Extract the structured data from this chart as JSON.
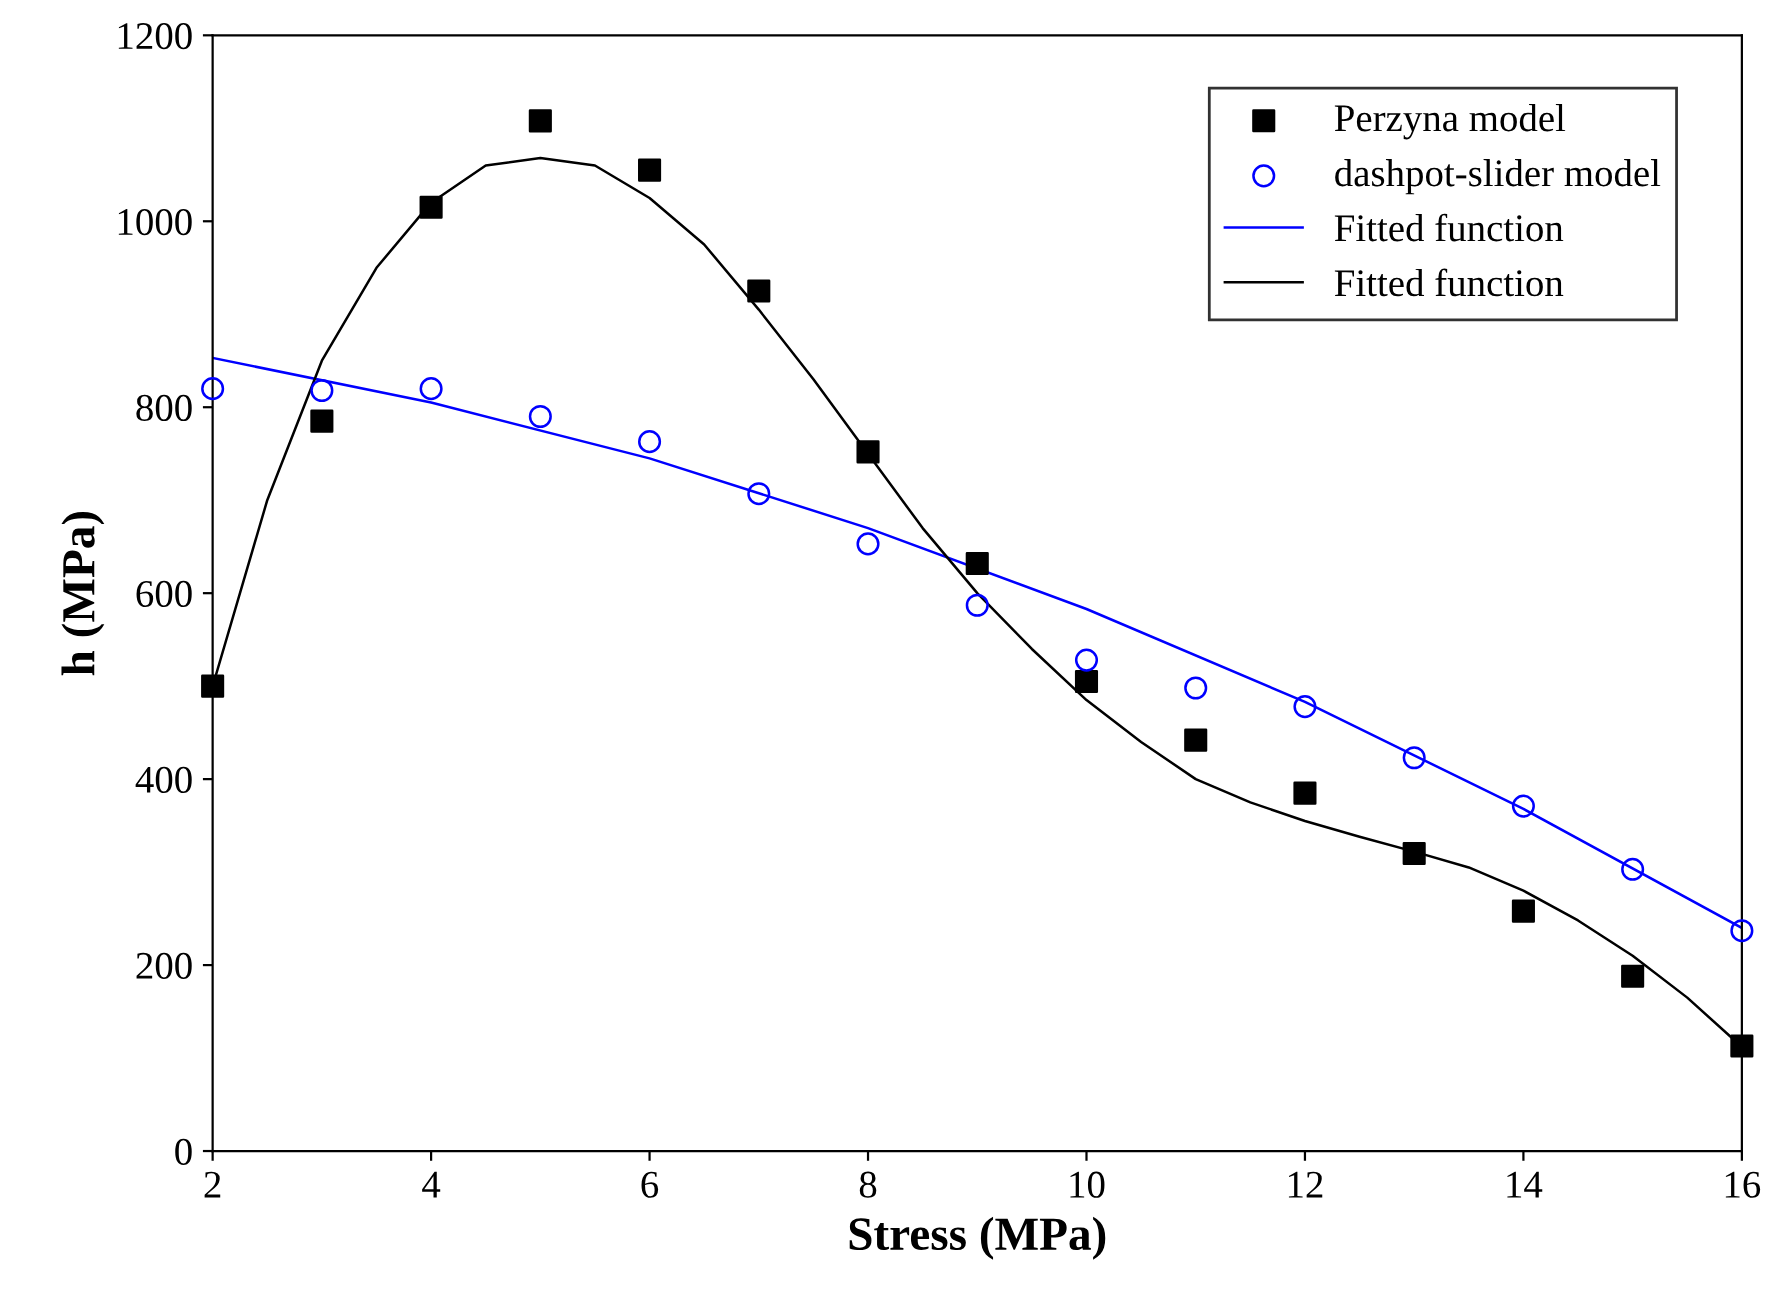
{
  "chart_data": {
    "type": "scatter",
    "xlabel": "Stress (MPa)",
    "ylabel": "h (MPa)",
    "xlim": [
      2,
      16
    ],
    "xticks": [
      2,
      4,
      6,
      8,
      10,
      12,
      14,
      16
    ],
    "ylim": [
      0,
      1200
    ],
    "yticks": [
      0,
      200,
      400,
      600,
      800,
      1000,
      1200
    ],
    "grid": false,
    "legend": "top right",
    "series": [
      {
        "name": "Perzyna model",
        "marker": "square",
        "color": "#000000",
        "x": [
          2,
          3,
          4,
          5,
          6,
          7,
          8,
          9,
          10,
          11,
          12,
          13,
          14,
          15,
          16
        ],
        "values": [
          500,
          785,
          1015,
          1108,
          1055,
          925,
          752,
          632,
          505,
          442,
          385,
          320,
          258,
          188,
          113
        ]
      },
      {
        "name": "dashpot-slider model",
        "marker": "circle",
        "color": "#0000ff",
        "x": [
          2,
          3,
          4,
          5,
          6,
          7,
          8,
          9,
          10,
          11,
          12,
          13,
          14,
          15,
          16
        ],
        "values": [
          820,
          818,
          820,
          790,
          763,
          707,
          653,
          587,
          528,
          498,
          478,
          423,
          371,
          303,
          237
        ]
      },
      {
        "name": "Fitted function",
        "type": "line",
        "color": "#0000ff",
        "x": [
          2,
          4,
          6,
          8,
          10,
          12,
          14,
          16
        ],
        "values": [
          853,
          805,
          745,
          670,
          583,
          483,
          368,
          240
        ]
      },
      {
        "name": "Fitted function",
        "type": "line",
        "color": "#000000",
        "x": [
          2,
          2.5,
          3,
          3.5,
          4,
          4.5,
          5,
          5.5,
          6,
          6.5,
          7,
          7.5,
          8,
          8.5,
          9,
          9.5,
          10,
          10.5,
          11,
          11.5,
          12,
          12.5,
          13,
          13.5,
          14,
          14.5,
          15,
          15.5,
          16
        ],
        "values": [
          500,
          700,
          850,
          950,
          1020,
          1060,
          1068,
          1060,
          1025,
          975,
          905,
          830,
          750,
          670,
          600,
          540,
          485,
          440,
          400,
          375,
          355,
          338,
          322,
          305,
          280,
          248,
          210,
          165,
          112
        ]
      }
    ]
  }
}
